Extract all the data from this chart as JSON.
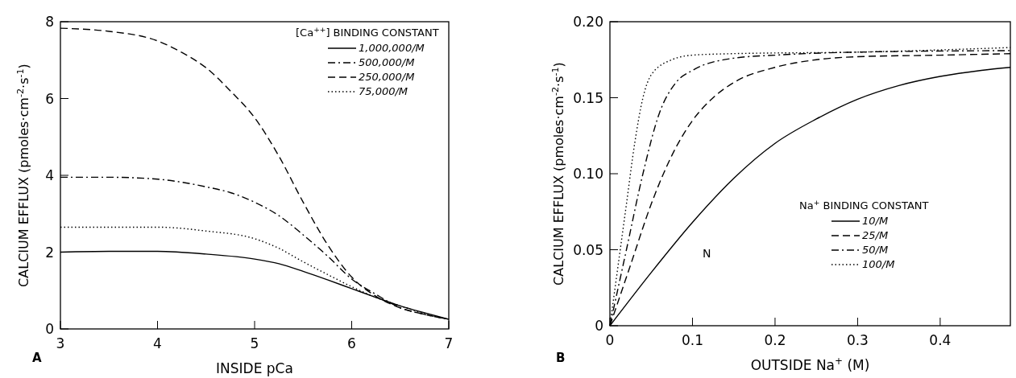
{
  "chart_data": [
    {
      "type": "line",
      "xlabel": "INSIDE pCa",
      "ylabel": "CALCIUM EFFLUX (pmoles·cm$^{-2}$·s$^{-1}$)",
      "legend_title": "[Ca$^{++}$] BINDING CONSTANT",
      "legend": "top right",
      "grid": false,
      "xlim": [
        3,
        7
      ],
      "ylim": [
        0,
        8
      ],
      "xticks": [
        3,
        4,
        5,
        6,
        7
      ],
      "yticks": [
        0,
        2,
        4,
        6,
        8
      ],
      "annotations": [
        "A"
      ],
      "series": [
        {
          "name": "1,000,000/M",
          "color": "#000000",
          "line_style": "solid",
          "x": [
            3,
            3.5,
            4,
            4.5,
            5,
            5.25,
            5.5,
            5.75,
            6,
            6.25,
            6.5,
            6.75,
            7
          ],
          "values": [
            2.0,
            2.02,
            2.02,
            1.95,
            1.82,
            1.7,
            1.5,
            1.28,
            1.05,
            0.82,
            0.6,
            0.42,
            0.25
          ]
        },
        {
          "name": "500,000/M",
          "color": "#000000",
          "line_style": "dashdot",
          "x": [
            3,
            3.5,
            4,
            4.5,
            4.75,
            5,
            5.25,
            5.5,
            5.75,
            6,
            6.25,
            6.5,
            6.75,
            7
          ],
          "values": [
            3.95,
            3.95,
            3.9,
            3.7,
            3.55,
            3.3,
            2.95,
            2.45,
            1.9,
            1.3,
            0.9,
            0.55,
            0.38,
            0.25
          ]
        },
        {
          "name": "250,000/M",
          "color": "#000000",
          "line_style": "dashed",
          "x": [
            3,
            3.5,
            4,
            4.25,
            4.5,
            4.75,
            5,
            5.25,
            5.5,
            5.75,
            6,
            6.25,
            6.5,
            6.75,
            7
          ],
          "values": [
            7.83,
            7.75,
            7.5,
            7.2,
            6.8,
            6.2,
            5.5,
            4.5,
            3.3,
            2.2,
            1.35,
            0.85,
            0.55,
            0.38,
            0.25
          ]
        },
        {
          "name": "75,000/M",
          "color": "#000000",
          "line_style": "dotted",
          "x": [
            3,
            3.5,
            4,
            4.5,
            5,
            5.25,
            5.5,
            5.75,
            6,
            6.25,
            6.5,
            6.75,
            7
          ],
          "values": [
            2.65,
            2.65,
            2.65,
            2.55,
            2.35,
            2.1,
            1.75,
            1.42,
            1.1,
            0.82,
            0.6,
            0.4,
            0.25
          ]
        }
      ]
    },
    {
      "type": "line",
      "xlabel": "OUTSIDE  Na$^{+}$  (M)",
      "ylabel": "CALCIUM EFFLUX (pmoles·cm$^{-2}$·s$^{-1}$)",
      "legend_title": "Na$^{+}$ BINDING CONSTANT",
      "legend": "bottom right",
      "grid": false,
      "xlim": [
        0,
        0.485
      ],
      "ylim": [
        0,
        0.2
      ],
      "xticks": [
        0,
        {
          "value": 0.1,
          "label": "0.1"
        },
        {
          "value": 0.2,
          "label": "0.2"
        },
        {
          "value": 0.3,
          "label": "0.3"
        },
        {
          "value": 0.4,
          "label": "0.4"
        }
      ],
      "yticks": [
        0,
        {
          "value": 0.05,
          "label": "0.05"
        },
        {
          "value": 0.1,
          "label": "0.10"
        },
        {
          "value": 0.15,
          "label": "0.15"
        },
        {
          "value": 0.2,
          "label": "0.20"
        }
      ],
      "annotations": [
        "B",
        "N"
      ],
      "series": [
        {
          "name": "10/M",
          "color": "#000000",
          "line_style": "solid",
          "x": [
            0,
            0.05,
            0.1,
            0.15,
            0.2,
            0.25,
            0.3,
            0.35,
            0.4,
            0.45,
            0.485
          ],
          "values": [
            0,
            0.035,
            0.068,
            0.097,
            0.12,
            0.136,
            0.149,
            0.158,
            0.164,
            0.168,
            0.17
          ]
        },
        {
          "name": "25/M",
          "color": "#000000",
          "line_style": "dashed",
          "x": [
            0,
            0.025,
            0.05,
            0.075,
            0.1,
            0.125,
            0.15,
            0.2,
            0.25,
            0.3,
            0.4,
            0.485
          ],
          "values": [
            0,
            0.04,
            0.08,
            0.112,
            0.135,
            0.15,
            0.16,
            0.17,
            0.175,
            0.177,
            0.178,
            0.179
          ]
        },
        {
          "name": "50/M",
          "color": "#000000",
          "line_style": "dashdot",
          "x": [
            0,
            0.02,
            0.04,
            0.06,
            0.08,
            0.1,
            0.15,
            0.2,
            0.3,
            0.485
          ],
          "values": [
            0,
            0.05,
            0.1,
            0.14,
            0.16,
            0.168,
            0.176,
            0.178,
            0.18,
            0.181
          ]
        },
        {
          "name": "100/M",
          "color": "#000000",
          "line_style": "dotted",
          "x": [
            0,
            0.01,
            0.02,
            0.03,
            0.04,
            0.05,
            0.075,
            0.1,
            0.15,
            0.3,
            0.485
          ],
          "values": [
            0,
            0.04,
            0.08,
            0.12,
            0.15,
            0.165,
            0.175,
            0.178,
            0.179,
            0.18,
            0.183
          ]
        }
      ]
    }
  ]
}
